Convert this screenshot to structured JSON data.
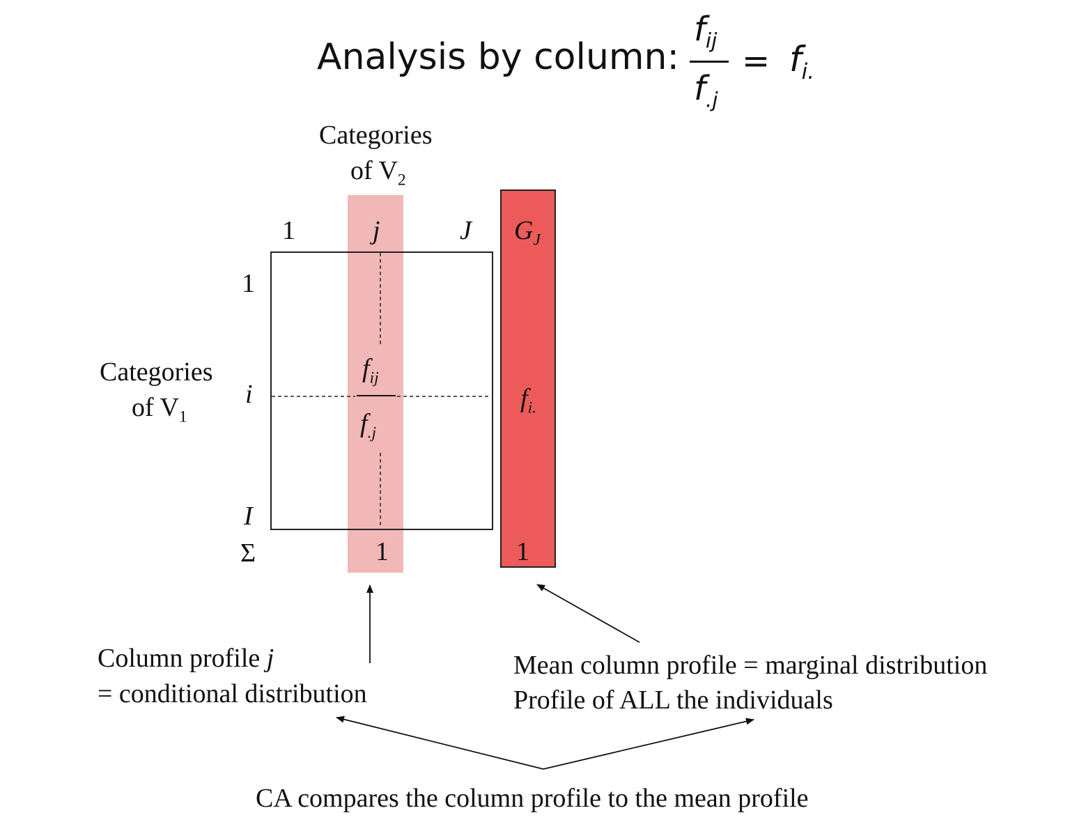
{
  "title": {
    "prefix": "Analysis by column:",
    "numerator": "f",
    "numerator_sub": "ij",
    "denominator": "f",
    "denominator_sub": ".j",
    "equals": "=",
    "rhs": "f",
    "rhs_sub": "i."
  },
  "columns_header": {
    "line1": "Categories",
    "line2": "of V",
    "line2_sub": "2"
  },
  "column_indices": {
    "first": "1",
    "mid": "j",
    "last": "J",
    "mean": "G",
    "mean_sub": "J"
  },
  "rows_header": {
    "line1": "Categories",
    "line2": "of V",
    "line2_sub": "1"
  },
  "row_indices": {
    "first": "1",
    "mid": "i",
    "last": "I",
    "sum": "Σ"
  },
  "cell": {
    "numerator": "f",
    "numerator_sub": "ij",
    "denominator": "f",
    "denominator_sub": ".j"
  },
  "mean_cell": {
    "value": "f",
    "value_sub": "i."
  },
  "sums": {
    "profile": "1",
    "mean": "1"
  },
  "annotations": {
    "column_profile_line1": "Column profile ",
    "column_profile_var": "j",
    "column_profile_line2": "= conditional distribution",
    "mean_profile_line1": "Mean column profile = marginal distribution",
    "mean_profile_line2": "Profile of ALL the individuals",
    "comparison": "CA compares the column profile to the mean profile"
  },
  "colors": {
    "column_highlight": "#f2b8b8",
    "mean_column": "#ec5b5a",
    "ink": "#111111"
  }
}
